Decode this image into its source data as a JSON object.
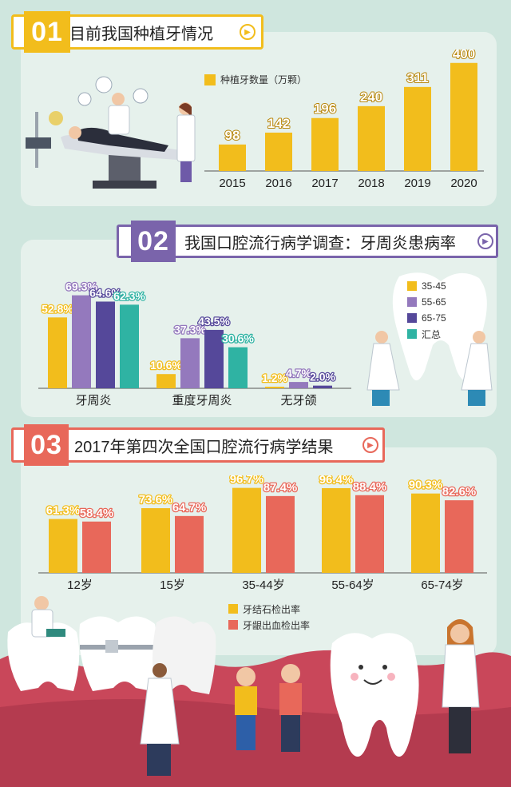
{
  "section1": {
    "number": "01",
    "title": "目前我国种植牙情况",
    "legend": "种植牙数量（万颗）",
    "chart_data": {
      "type": "bar",
      "categories": [
        "2015",
        "2016",
        "2017",
        "2018",
        "2019",
        "2020"
      ],
      "series": [
        {
          "name": "种植牙数量（万颗）",
          "values": [
            98,
            142,
            196,
            240,
            311,
            400
          ]
        }
      ],
      "ylim": [
        0,
        420
      ]
    }
  },
  "section2": {
    "number": "02",
    "title": "我国口腔流行病学调查：牙周炎患病率",
    "chart_data": {
      "type": "bar",
      "categories": [
        "牙周炎",
        "重度牙周炎",
        "无牙颌"
      ],
      "series": [
        {
          "name": "35-45",
          "values": [
            52.8,
            10.6,
            1.2
          ]
        },
        {
          "name": "55-65",
          "values": [
            69.3,
            37.3,
            4.7
          ]
        },
        {
          "name": "65-75",
          "values": [
            64.6,
            43.5,
            2.0
          ]
        },
        {
          "name": "汇总",
          "values": [
            62.3,
            30.6,
            null
          ]
        }
      ],
      "ylim": [
        0,
        75
      ]
    }
  },
  "section3": {
    "number": "03",
    "title": "2017年第四次全国口腔流行病学结果",
    "chart_data": {
      "type": "bar",
      "categories": [
        "12岁",
        "15岁",
        "35-44岁",
        "55-64岁",
        "65-74岁"
      ],
      "series": [
        {
          "name": "牙结石检出率",
          "values": [
            61.3,
            73.6,
            96.7,
            96.4,
            90.3
          ]
        },
        {
          "name": "牙龈出血检出率",
          "values": [
            58.4,
            64.7,
            87.4,
            88.4,
            82.6
          ]
        }
      ],
      "ylim": [
        0,
        100
      ]
    }
  },
  "colors": {
    "yellow": "#f2bd1c",
    "purple_light": "#9479bd",
    "purple_dark": "#55489a",
    "teal": "#2fb3a3",
    "coral": "#e8685a",
    "gum": "#c9475a"
  },
  "icons": [
    "play-icon",
    "dentist-chair-scene",
    "dentist-figure",
    "tooth-mascot",
    "child-figure",
    "braces-tooth"
  ]
}
